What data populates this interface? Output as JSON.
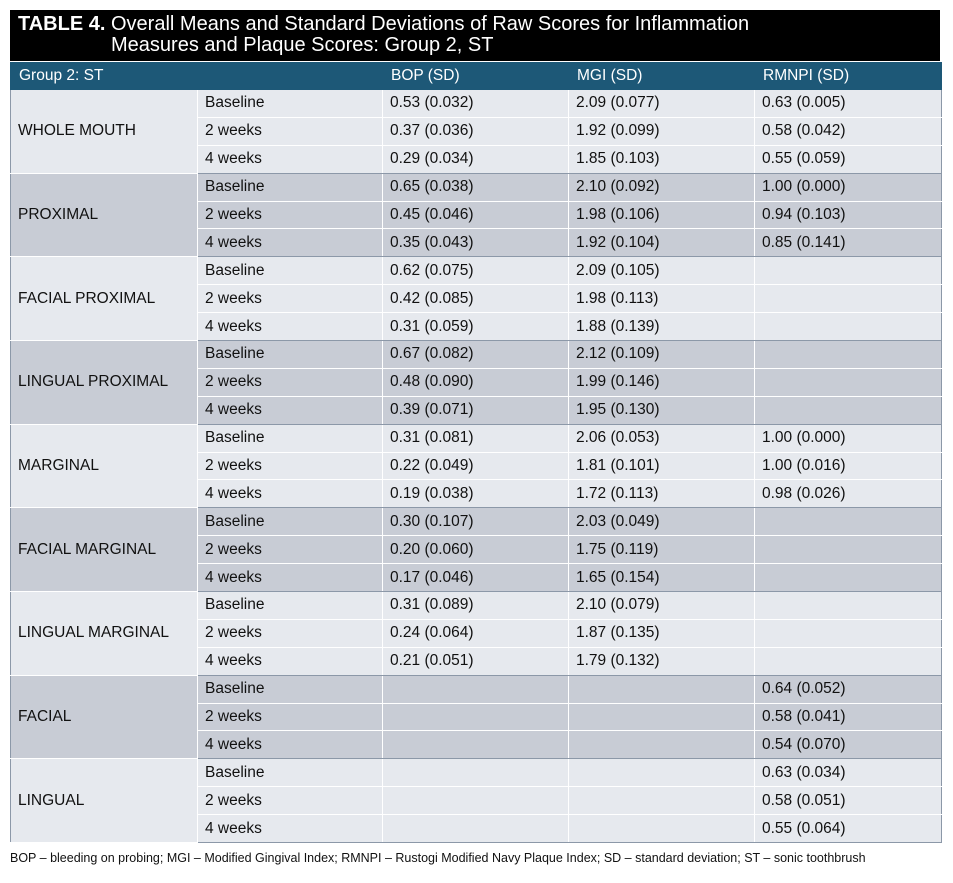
{
  "title": {
    "label": "TABLE 4.",
    "lines": [
      "Overall Means and Standard Deviations of Raw Scores for Inflammation",
      "Measures and Plaque Scores: Group 2, ST"
    ]
  },
  "table": {
    "header": [
      "Group 2: ST",
      "BOP (SD)",
      "MGI (SD)",
      "RMNPI (SD)"
    ],
    "groups": [
      {
        "label": "WHOLE MOUTH",
        "rows": [
          [
            "Baseline",
            "0.53 (0.032)",
            "2.09 (0.077)",
            "0.63 (0.005)"
          ],
          [
            "2 weeks",
            "0.37 (0.036)",
            "1.92 (0.099)",
            "0.58 (0.042)"
          ],
          [
            "4 weeks",
            "0.29 (0.034)",
            "1.85 (0.103)",
            "0.55 (0.059)"
          ]
        ]
      },
      {
        "label": "PROXIMAL",
        "rows": [
          [
            "Baseline",
            "0.65 (0.038)",
            "2.10 (0.092)",
            "1.00 (0.000)"
          ],
          [
            "2 weeks",
            "0.45 (0.046)",
            "1.98 (0.106)",
            "0.94 (0.103)"
          ],
          [
            "4 weeks",
            "0.35 (0.043)",
            "1.92 (0.104)",
            "0.85 (0.141)"
          ]
        ]
      },
      {
        "label": "FACIAL PROXIMAL",
        "rows": [
          [
            "Baseline",
            "0.62 (0.075)",
            "2.09 (0.105)",
            null
          ],
          [
            "2 weeks",
            "0.42 (0.085)",
            "1.98 (0.113)",
            null
          ],
          [
            "4 weeks",
            "0.31 (0.059)",
            "1.88 (0.139)",
            null
          ]
        ]
      },
      {
        "label": "LINGUAL PROXIMAL",
        "rows": [
          [
            "Baseline",
            "0.67 (0.082)",
            "2.12 (0.109)",
            null
          ],
          [
            "2 weeks",
            "0.48 (0.090)",
            "1.99 (0.146)",
            null
          ],
          [
            "4 weeks",
            "0.39 (0.071)",
            "1.95 (0.130)",
            null
          ]
        ]
      },
      {
        "label": "MARGINAL",
        "rows": [
          [
            "Baseline",
            "0.31 (0.081)",
            "2.06 (0.053)",
            "1.00 (0.000)"
          ],
          [
            "2 weeks",
            "0.22 (0.049)",
            "1.81 (0.101)",
            "1.00 (0.016)"
          ],
          [
            "4 weeks",
            "0.19 (0.038)",
            "1.72 (0.113)",
            "0.98 (0.026)"
          ]
        ]
      },
      {
        "label": "FACIAL MARGINAL",
        "rows": [
          [
            "Baseline",
            "0.30 (0.107)",
            "2.03 (0.049)",
            null
          ],
          [
            "2 weeks",
            "0.20 (0.060)",
            "1.75 (0.119)",
            null
          ],
          [
            "4 weeks",
            "0.17 (0.046)",
            "1.65 (0.154)",
            null
          ]
        ]
      },
      {
        "label": "LINGUAL MARGINAL",
        "rows": [
          [
            "Baseline",
            "0.31 (0.089)",
            "2.10 (0.079)",
            null
          ],
          [
            "2 weeks",
            "0.24 (0.064)",
            "1.87 (0.135)",
            null
          ],
          [
            "4 weeks",
            "0.21 (0.051)",
            "1.79 (0.132)",
            null
          ]
        ]
      },
      {
        "label": "FACIAL",
        "rows": [
          [
            "Baseline",
            null,
            null,
            "0.64 (0.052)"
          ],
          [
            "2 weeks",
            null,
            null,
            "0.58 (0.041)"
          ],
          [
            "4 weeks",
            null,
            null,
            "0.54 (0.070)"
          ]
        ]
      },
      {
        "label": "LINGUAL",
        "rows": [
          [
            "Baseline",
            null,
            null,
            "0.63 (0.034)"
          ],
          [
            "2 weeks",
            null,
            null,
            "0.58 (0.051)"
          ],
          [
            "4 weeks",
            null,
            null,
            "0.55 (0.064)"
          ]
        ]
      }
    ]
  },
  "footnote": "BOP – bleeding on probing; MGI – Modified Gingival Index; RMNPI – Rustogi Modified Navy Plaque Index; SD – standard deviation; ST – sonic toothbrush"
}
